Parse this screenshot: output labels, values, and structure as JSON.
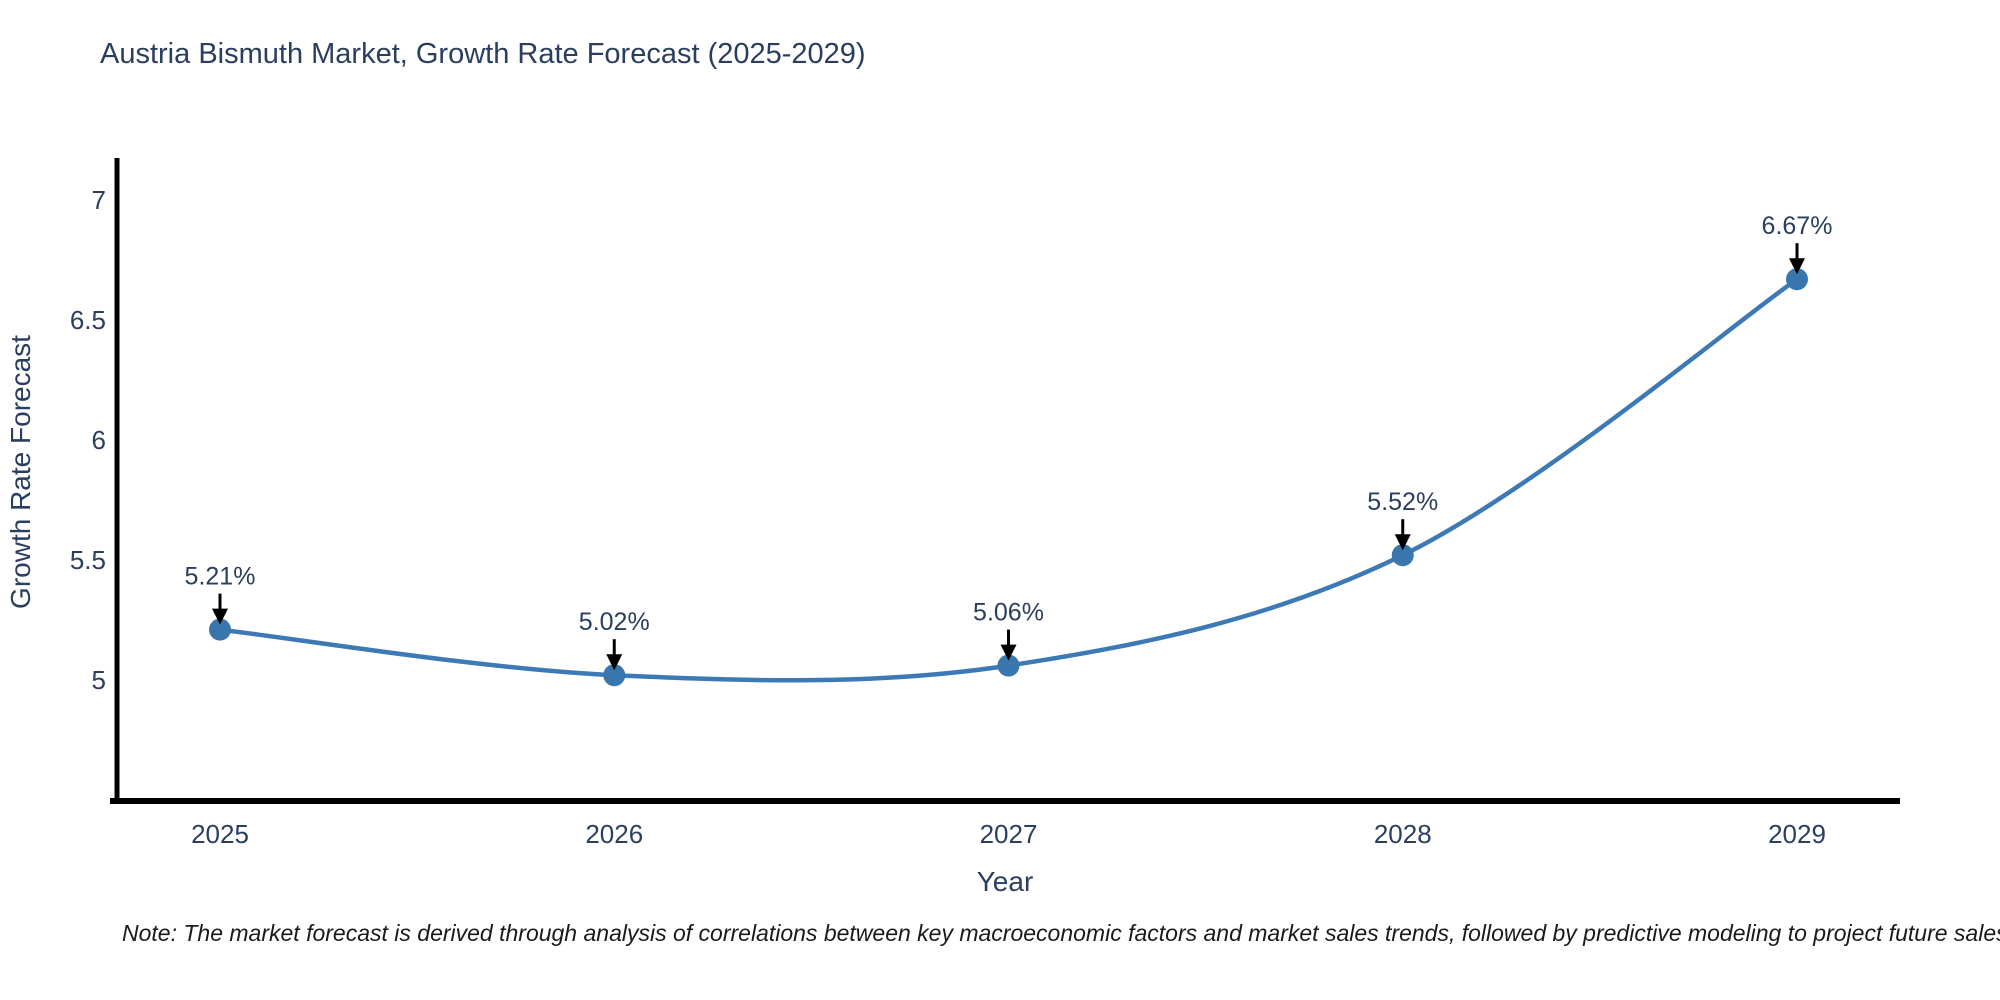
{
  "title": "Austria Bismuth Market, Growth Rate Forecast (2025-2029)",
  "footnote": "Note: The market forecast is derived through analysis of correlations between key macroeconomic factors and market sales trends, followed by predictive modeling to project future sales",
  "chart_data": {
    "type": "line",
    "x": [
      2025,
      2026,
      2027,
      2028,
      2029
    ],
    "xticklabels": [
      "2025",
      "2026",
      "2027",
      "2028",
      "2029"
    ],
    "values": [
      5.21,
      5.02,
      5.06,
      5.52,
      6.67
    ],
    "point_labels": [
      "5.21%",
      "5.02%",
      "5.06%",
      "5.52%",
      "6.67%"
    ],
    "title": "Austria Bismuth Market, Growth Rate Forecast (2025-2029)",
    "xlabel": "Year",
    "ylabel": "Growth Rate Forecast",
    "yticks": [
      5,
      5.5,
      6,
      6.5,
      7
    ],
    "ytick_labels": [
      "5",
      "5.5",
      "6",
      "6.5",
      "7"
    ],
    "ylim": [
      4.5,
      7.17
    ],
    "grid": false,
    "legend": "none",
    "line_color": "#3d7ab5",
    "marker_color": "#3a76ae",
    "axis_color": "#000000",
    "text_color": "#2a3f5f",
    "annotation_arrow_color": "#000000",
    "curve_style": "spline",
    "marker_style": "circle"
  }
}
